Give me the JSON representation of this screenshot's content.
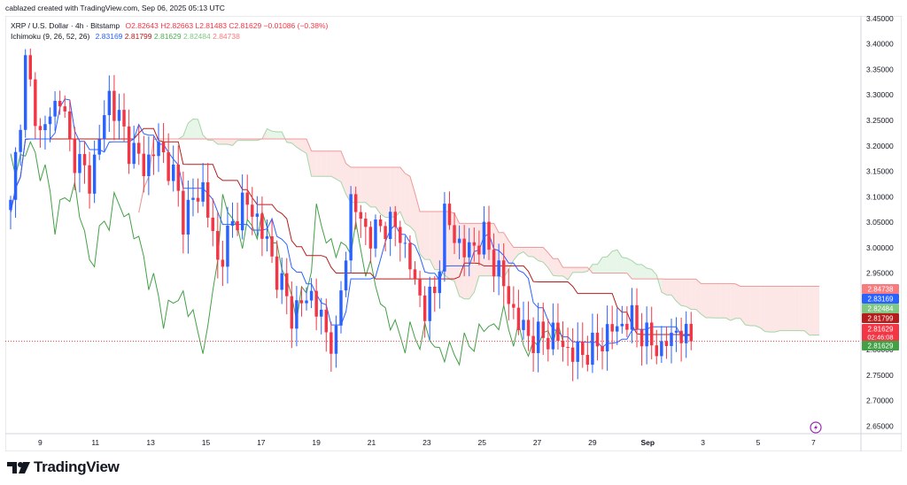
{
  "header": {
    "credit": "cablazed created with TradingView.com, Sep 06, 2025 05:13 UTC"
  },
  "legend": {
    "symbol": "XRP / U.S. Dollar · 4h · Bitstamp",
    "open": "O2.82643",
    "high": "H2.82663",
    "low": "L2.81483",
    "close": "C2.81629",
    "change": "−0.01086 (−0.38%)",
    "ichimoku_label": "Ichimoku (9, 26, 52, 26)",
    "ichimoku_values": [
      "2.83169",
      "2.81799",
      "2.81629",
      "2.82484",
      "2.84738"
    ]
  },
  "brand": {
    "name": "TradingView"
  },
  "colors": {
    "up": "#2962ff",
    "down": "#f23645",
    "conversion": "#2962ff",
    "base": "#b71c1c",
    "lagging": "#43a047",
    "span_a": "#a5d6a7",
    "span_b": "#ef9a9a",
    "cloud_bull": "#e8f5e9",
    "cloud_bear": "#fde6e6"
  },
  "chart_data": {
    "type": "candlestick",
    "interval": "4h",
    "ylim": [
      2.635,
      3.455
    ],
    "y_ticks": [
      "3.45000",
      "3.40000",
      "3.35000",
      "3.30000",
      "3.25000",
      "3.20000",
      "3.15000",
      "3.10000",
      "3.05000",
      "3.00000",
      "2.95000",
      "2.90000",
      "2.80000",
      "2.75000",
      "2.70000",
      "2.65000"
    ],
    "x_ticks": [
      "9",
      "11",
      "13",
      "15",
      "17",
      "19",
      "21",
      "23",
      "25",
      "27",
      "29",
      "Sep",
      "3",
      "5",
      "7"
    ],
    "last_price": 2.81629,
    "countdown": "02:46:08",
    "price_tags": [
      {
        "label": "2.84738",
        "value": 2.84738,
        "color": "#f77c80"
      },
      {
        "label": "2.83169",
        "value": 2.83169,
        "color": "#2962ff"
      },
      {
        "label": "2.82484",
        "value": 2.82484,
        "color": "#81c784"
      },
      {
        "label": "2.81799",
        "value": 2.81799,
        "color": "#b71c1c"
      },
      {
        "label": "2.81629",
        "value": 2.81629,
        "color": "#f23645"
      },
      {
        "label": "2.81629",
        "value": 2.81629,
        "color": "#43a047"
      }
    ],
    "close_profile": [
      [
        0,
        3.08
      ],
      [
        3,
        3.36
      ],
      [
        6,
        3.22
      ],
      [
        10,
        3.3
      ],
      [
        12,
        3.2
      ],
      [
        16,
        3.13
      ],
      [
        20,
        3.3
      ],
      [
        24,
        3.2
      ],
      [
        27,
        3.16
      ],
      [
        30,
        3.2
      ],
      [
        33,
        3.14
      ],
      [
        35,
        3.06
      ],
      [
        39,
        3.12
      ],
      [
        42,
        2.97
      ],
      [
        47,
        3.09
      ],
      [
        50,
        3.06
      ],
      [
        54,
        2.95
      ],
      [
        57,
        2.87
      ],
      [
        61,
        2.91
      ],
      [
        64,
        2.83
      ],
      [
        66,
        2.82
      ],
      [
        69,
        3.09
      ],
      [
        73,
        3.02
      ],
      [
        76,
        3.05
      ],
      [
        79,
        3.03
      ],
      [
        82,
        2.93
      ],
      [
        84,
        2.88
      ],
      [
        86,
        2.91
      ],
      [
        88,
        3.06
      ],
      [
        92,
        2.99
      ],
      [
        96,
        3.02
      ],
      [
        99,
        2.95
      ],
      [
        103,
        2.85
      ],
      [
        106,
        2.82
      ],
      [
        110,
        2.83
      ],
      [
        114,
        2.79
      ],
      [
        118,
        2.8
      ],
      [
        122,
        2.84
      ],
      [
        126,
        2.86
      ],
      [
        129,
        2.82
      ],
      [
        132,
        2.8
      ],
      [
        135,
        2.84
      ],
      [
        137,
        2.82
      ],
      [
        138,
        2.816
      ]
    ]
  }
}
